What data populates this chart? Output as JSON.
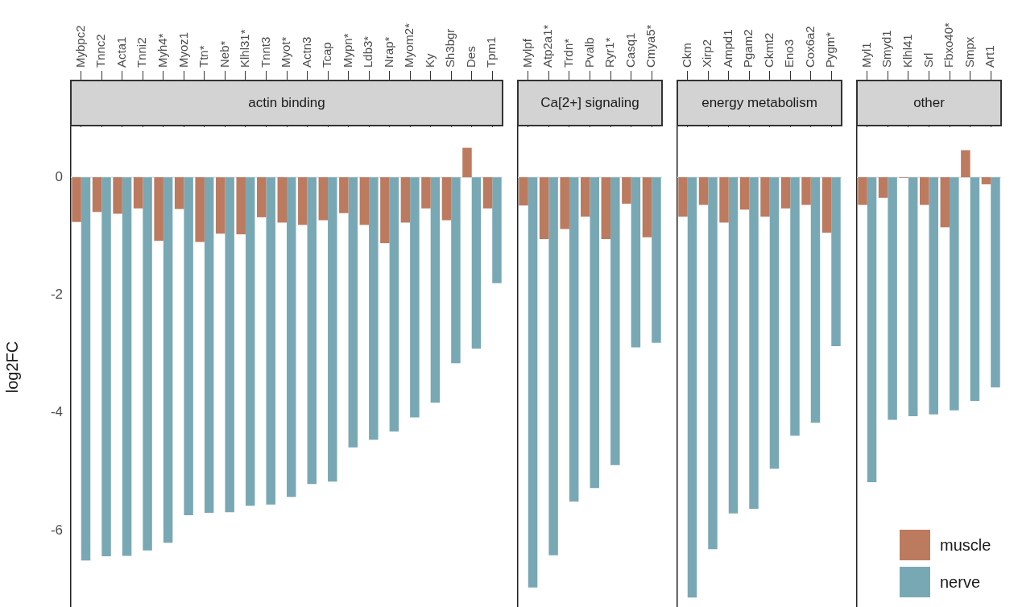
{
  "chart_data": [
    {
      "type": "bar",
      "title": "actin binding",
      "ylabel": "log2FC",
      "categories": [
        "Mybpc2",
        "Tnnc2",
        "Acta1",
        "Tnni2",
        "Myh4*",
        "Myoz1",
        "Ttn*",
        "Neb*",
        "Klhl31*",
        "Tnnt3",
        "Myot*",
        "Actn3",
        "Tcap",
        "Mypn*",
        "Ldb3*",
        "Nrap*",
        "Myom2*",
        "Ky",
        "Sh3bgr",
        "Des",
        "Tpm1"
      ],
      "series": [
        {
          "color": "#bc7a5f",
          "values": [
            -0.76,
            -0.59,
            -0.62,
            -0.53,
            -1.08,
            -0.54,
            -1.1,
            -0.96,
            -0.97,
            -0.68,
            -0.77,
            -0.81,
            -0.73,
            -0.61,
            -0.81,
            -1.12,
            -0.77,
            -0.53,
            -0.73,
            0.5,
            -0.53
          ]
        },
        {
          "color": "#79a8b5",
          "values": [
            -6.51,
            -6.44,
            -6.43,
            -6.34,
            -6.21,
            -5.74,
            -5.7,
            -5.69,
            -5.58,
            -5.56,
            -5.43,
            -5.21,
            -5.17,
            -4.59,
            -4.46,
            -4.32,
            -4.08,
            -3.83,
            -3.16,
            -2.91,
            -1.8
          ]
        }
      ],
      "ylim": [
        -7.3,
        0.85
      ],
      "yticks": [
        -6,
        -4,
        -2,
        0
      ],
      "ref_lines": [
        {
          "axis": "y",
          "value": 0,
          "color": "#e3e3e3"
        }
      ]
    },
    {
      "type": "bar",
      "title": "Ca[2+] signaling",
      "categories": [
        "Mylpf",
        "Atp2a1*",
        "Trdn*",
        "Pvalb",
        "Ryr1*",
        "Casq1",
        "Cmya5*"
      ],
      "series": [
        {
          "color": "#bc7a5f",
          "values": [
            -0.48,
            -1.05,
            -0.88,
            -0.67,
            -1.05,
            -0.45,
            -1.02
          ]
        },
        {
          "color": "#79a8b5",
          "values": [
            -6.97,
            -6.42,
            -5.51,
            -5.28,
            -4.89,
            -2.89,
            -2.81
          ]
        }
      ],
      "ylim": [
        -7.3,
        0.85
      ],
      "yticks": [
        -6,
        -4,
        -2,
        0
      ],
      "tick_labels": "x",
      "ref_lines": [
        {
          "axis": "y",
          "value": 0,
          "color": "#e3e3e3"
        }
      ]
    },
    {
      "type": "bar",
      "title": "energy metabolism",
      "categories": [
        "Ckm",
        "Xirp2",
        "Ampd1",
        "Pgam2",
        "Ckmt2",
        "Eno3",
        "Cox6a2",
        "Pygm*"
      ],
      "series": [
        {
          "color": "#bc7a5f",
          "values": [
            -0.67,
            -0.47,
            -0.77,
            -0.55,
            -0.67,
            -0.53,
            -0.47,
            -0.94
          ]
        },
        {
          "color": "#79a8b5",
          "values": [
            -7.14,
            -6.32,
            -5.71,
            -5.63,
            -4.95,
            -4.39,
            -4.17,
            -2.87
          ]
        }
      ],
      "ylim": [
        -7.3,
        0.85
      ],
      "yticks": [
        -6,
        -4,
        -2,
        0
      ],
      "tick_labels": "x",
      "ref_lines": [
        {
          "axis": "y",
          "value": 0,
          "color": "#e3e3e3"
        }
      ]
    },
    {
      "type": "bar",
      "title": "other",
      "categories": [
        "Myl1",
        "Smyd1",
        "Klhl41",
        "Srl",
        "Fbxo40*",
        "Smpx",
        "Art1"
      ],
      "series": [
        {
          "name": "muscle",
          "color": "#bc7a5f",
          "values": [
            -0.47,
            -0.35,
            -0.01,
            -0.47,
            -0.85,
            0.46,
            -0.12
          ]
        },
        {
          "name": "nerve",
          "color": "#79a8b5",
          "values": [
            -5.18,
            -4.12,
            -4.06,
            -4.03,
            -3.96,
            -3.8,
            -3.57
          ]
        }
      ],
      "ylim": [
        -7.3,
        0.85
      ],
      "yticks": [
        -6,
        -4,
        -2,
        0
      ],
      "tick_labels": "x",
      "legend": "bottom right",
      "ref_lines": [
        {
          "axis": "y",
          "value": 0,
          "color": "#e3e3e3"
        }
      ]
    }
  ]
}
